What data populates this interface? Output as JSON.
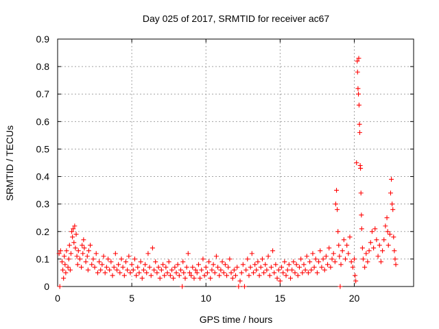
{
  "chart_data": {
    "type": "scatter",
    "title": "Day 025 of 2017, SRMTID for receiver ac67",
    "xlabel": "GPS time / hours",
    "ylabel": "SRMTID / TECUs",
    "xlim": [
      0,
      24
    ],
    "ylim": [
      0,
      0.9
    ],
    "xticks": [
      "0",
      "5",
      "10",
      "15",
      "20"
    ],
    "yticks": [
      "0",
      "0.1",
      "0.2",
      "0.3",
      "0.4",
      "0.5",
      "0.6",
      "0.7",
      "0.8",
      "0.9"
    ],
    "grid": true,
    "marker": "+",
    "color": "#ff0000",
    "series": [
      {
        "name": "SRMTID",
        "points": [
          [
            0.1,
            0.12
          ],
          [
            0.15,
            0.0
          ],
          [
            0.2,
            0.13
          ],
          [
            0.3,
            0.09
          ],
          [
            0.35,
            0.06
          ],
          [
            0.4,
            0.03
          ],
          [
            0.45,
            0.11
          ],
          [
            0.5,
            0.08
          ],
          [
            0.55,
            0.05
          ],
          [
            0.6,
            0.13
          ],
          [
            0.7,
            0.07
          ],
          [
            0.75,
            0.1
          ],
          [
            0.8,
            0.15
          ],
          [
            0.85,
            0.06
          ],
          [
            0.9,
            0.12
          ],
          [
            0.95,
            0.2
          ],
          [
            1.0,
            0.18
          ],
          [
            1.05,
            0.21
          ],
          [
            1.1,
            0.16
          ],
          [
            1.15,
            0.22
          ],
          [
            1.2,
            0.14
          ],
          [
            1.25,
            0.19
          ],
          [
            1.3,
            0.11
          ],
          [
            1.35,
            0.08
          ],
          [
            1.4,
            0.13
          ],
          [
            1.5,
            0.1
          ],
          [
            1.6,
            0.07
          ],
          [
            1.65,
            0.15
          ],
          [
            1.7,
            0.12
          ],
          [
            1.75,
            0.17
          ],
          [
            1.8,
            0.14
          ],
          [
            1.9,
            0.09
          ],
          [
            2.0,
            0.11
          ],
          [
            2.05,
            0.06
          ],
          [
            2.1,
            0.13
          ],
          [
            2.2,
            0.15
          ],
          [
            2.3,
            0.08
          ],
          [
            2.4,
            0.1
          ],
          [
            2.5,
            0.07
          ],
          [
            2.6,
            0.12
          ],
          [
            2.7,
            0.05
          ],
          [
            2.8,
            0.09
          ],
          [
            2.9,
            0.06
          ],
          [
            3.0,
            0.08
          ],
          [
            3.1,
            0.11
          ],
          [
            3.2,
            0.05
          ],
          [
            3.3,
            0.07
          ],
          [
            3.4,
            0.1
          ],
          [
            3.5,
            0.06
          ],
          [
            3.6,
            0.09
          ],
          [
            3.7,
            0.04
          ],
          [
            3.8,
            0.07
          ],
          [
            3.9,
            0.12
          ],
          [
            4.0,
            0.06
          ],
          [
            4.1,
            0.08
          ],
          [
            4.2,
            0.05
          ],
          [
            4.3,
            0.1
          ],
          [
            4.4,
            0.07
          ],
          [
            4.5,
            0.04
          ],
          [
            4.6,
            0.09
          ],
          [
            4.7,
            0.06
          ],
          [
            4.8,
            0.11
          ],
          [
            4.9,
            0.05
          ],
          [
            5.0,
            0.08
          ],
          [
            5.1,
            0.06
          ],
          [
            5.2,
            0.1
          ],
          [
            5.3,
            0.04
          ],
          [
            5.4,
            0.07
          ],
          [
            5.5,
            0.05
          ],
          [
            5.6,
            0.09
          ],
          [
            5.7,
            0.03
          ],
          [
            5.8,
            0.06
          ],
          [
            5.9,
            0.08
          ],
          [
            6.0,
            0.05
          ],
          [
            6.1,
            0.12
          ],
          [
            6.2,
            0.07
          ],
          [
            6.3,
            0.04
          ],
          [
            6.4,
            0.14
          ],
          [
            6.5,
            0.06
          ],
          [
            6.6,
            0.09
          ],
          [
            6.7,
            0.05
          ],
          [
            6.8,
            0.07
          ],
          [
            6.9,
            0.03
          ],
          [
            7.0,
            0.06
          ],
          [
            7.1,
            0.08
          ],
          [
            7.2,
            0.04
          ],
          [
            7.3,
            0.07
          ],
          [
            7.4,
            0.05
          ],
          [
            7.5,
            0.09
          ],
          [
            7.6,
            0.04
          ],
          [
            7.7,
            0.06
          ],
          [
            7.8,
            0.03
          ],
          [
            7.9,
            0.07
          ],
          [
            8.0,
            0.05
          ],
          [
            8.1,
            0.08
          ],
          [
            8.2,
            0.04
          ],
          [
            8.3,
            0.06
          ],
          [
            8.4,
            0.0
          ],
          [
            8.45,
            0.09
          ],
          [
            8.5,
            0.05
          ],
          [
            8.6,
            0.03
          ],
          [
            8.7,
            0.07
          ],
          [
            8.8,
            0.12
          ],
          [
            8.9,
            0.05
          ],
          [
            9.0,
            0.04
          ],
          [
            9.1,
            0.07
          ],
          [
            9.2,
            0.03
          ],
          [
            9.3,
            0.06
          ],
          [
            9.4,
            0.05
          ],
          [
            9.5,
            0.08
          ],
          [
            9.6,
            0.03
          ],
          [
            9.7,
            0.06
          ],
          [
            9.8,
            0.1
          ],
          [
            9.9,
            0.04
          ],
          [
            10.0,
            0.07
          ],
          [
            10.1,
            0.05
          ],
          [
            10.2,
            0.09
          ],
          [
            10.3,
            0.03
          ],
          [
            10.4,
            0.06
          ],
          [
            10.5,
            0.08
          ],
          [
            10.6,
            0.05
          ],
          [
            10.7,
            0.11
          ],
          [
            10.8,
            0.07
          ],
          [
            10.9,
            0.04
          ],
          [
            11.0,
            0.06
          ],
          [
            11.1,
            0.09
          ],
          [
            11.2,
            0.05
          ],
          [
            11.3,
            0.08
          ],
          [
            11.4,
            0.04
          ],
          [
            11.5,
            0.07
          ],
          [
            11.6,
            0.1
          ],
          [
            11.7,
            0.05
          ],
          [
            11.8,
            0.03
          ],
          [
            11.9,
            0.06
          ],
          [
            12.0,
            0.04
          ],
          [
            12.1,
            0.07
          ],
          [
            12.2,
            0.0
          ],
          [
            12.3,
            0.02
          ],
          [
            12.4,
            0.05
          ],
          [
            12.5,
            0.08
          ],
          [
            12.6,
            0.0
          ],
          [
            12.7,
            0.06
          ],
          [
            12.8,
            0.1
          ],
          [
            12.9,
            0.04
          ],
          [
            13.0,
            0.07
          ],
          [
            13.1,
            0.12
          ],
          [
            13.2,
            0.05
          ],
          [
            13.3,
            0.08
          ],
          [
            13.4,
            0.06
          ],
          [
            13.5,
            0.09
          ],
          [
            13.6,
            0.04
          ],
          [
            13.7,
            0.07
          ],
          [
            13.8,
            0.1
          ],
          [
            13.9,
            0.05
          ],
          [
            14.0,
            0.08
          ],
          [
            14.1,
            0.06
          ],
          [
            14.2,
            0.11
          ],
          [
            14.3,
            0.04
          ],
          [
            14.4,
            0.07
          ],
          [
            14.5,
            0.13
          ],
          [
            14.6,
            0.05
          ],
          [
            14.7,
            0.08
          ],
          [
            14.8,
            0.03
          ],
          [
            14.9,
            0.06
          ],
          [
            15.0,
            0.02
          ],
          [
            15.1,
            0.07
          ],
          [
            15.2,
            0.05
          ],
          [
            15.3,
            0.09
          ],
          [
            15.4,
            0.04
          ],
          [
            15.5,
            0.06
          ],
          [
            15.6,
            0.08
          ],
          [
            15.7,
            0.03
          ],
          [
            15.8,
            0.06
          ],
          [
            15.9,
            0.09
          ],
          [
            16.0,
            0.05
          ],
          [
            16.1,
            0.08
          ],
          [
            16.2,
            0.04
          ],
          [
            16.3,
            0.07
          ],
          [
            16.4,
            0.1
          ],
          [
            16.5,
            0.05
          ],
          [
            16.6,
            0.08
          ],
          [
            16.7,
            0.06
          ],
          [
            16.8,
            0.11
          ],
          [
            16.9,
            0.05
          ],
          [
            17.0,
            0.09
          ],
          [
            17.1,
            0.06
          ],
          [
            17.2,
            0.12
          ],
          [
            17.3,
            0.07
          ],
          [
            17.4,
            0.1
          ],
          [
            17.5,
            0.05
          ],
          [
            17.6,
            0.09
          ],
          [
            17.7,
            0.13
          ],
          [
            17.8,
            0.07
          ],
          [
            17.9,
            0.1
          ],
          [
            18.0,
            0.06
          ],
          [
            18.1,
            0.11
          ],
          [
            18.2,
            0.08
          ],
          [
            18.3,
            0.14
          ],
          [
            18.4,
            0.07
          ],
          [
            18.5,
            0.1
          ],
          [
            18.6,
            0.12
          ],
          [
            18.7,
            0.09
          ],
          [
            18.75,
            0.3
          ],
          [
            18.8,
            0.35
          ],
          [
            18.85,
            0.28
          ],
          [
            18.9,
            0.2
          ],
          [
            18.95,
            0.15
          ],
          [
            19.0,
            0.11
          ],
          [
            19.05,
            0.0
          ],
          [
            19.1,
            0.08
          ],
          [
            19.2,
            0.13
          ],
          [
            19.3,
            0.17
          ],
          [
            19.4,
            0.1
          ],
          [
            19.5,
            0.15
          ],
          [
            19.6,
            0.12
          ],
          [
            19.7,
            0.18
          ],
          [
            19.8,
            0.09
          ],
          [
            19.9,
            0.07
          ],
          [
            20.0,
            0.1
          ],
          [
            20.05,
            0.04
          ],
          [
            20.1,
            0.02
          ],
          [
            20.15,
            0.45
          ],
          [
            20.2,
            0.82
          ],
          [
            20.22,
            0.78
          ],
          [
            20.25,
            0.72
          ],
          [
            20.28,
            0.7
          ],
          [
            20.3,
            0.83
          ],
          [
            20.32,
            0.66
          ],
          [
            20.35,
            0.59
          ],
          [
            20.37,
            0.56
          ],
          [
            20.4,
            0.44
          ],
          [
            20.42,
            0.43
          ],
          [
            20.45,
            0.34
          ],
          [
            20.48,
            0.26
          ],
          [
            20.5,
            0.21
          ],
          [
            20.55,
            0.14
          ],
          [
            20.6,
            0.1
          ],
          [
            20.7,
            0.07
          ],
          [
            20.8,
            0.12
          ],
          [
            20.9,
            0.09
          ],
          [
            21.0,
            0.13
          ],
          [
            21.1,
            0.16
          ],
          [
            21.2,
            0.2
          ],
          [
            21.3,
            0.14
          ],
          [
            21.4,
            0.21
          ],
          [
            21.5,
            0.17
          ],
          [
            21.6,
            0.11
          ],
          [
            21.7,
            0.15
          ],
          [
            21.8,
            0.09
          ],
          [
            21.9,
            0.13
          ],
          [
            22.0,
            0.17
          ],
          [
            22.1,
            0.22
          ],
          [
            22.2,
            0.25
          ],
          [
            22.25,
            0.2
          ],
          [
            22.3,
            0.15
          ],
          [
            22.4,
            0.19
          ],
          [
            22.45,
            0.34
          ],
          [
            22.5,
            0.39
          ],
          [
            22.55,
            0.3
          ],
          [
            22.6,
            0.28
          ],
          [
            22.65,
            0.18
          ],
          [
            22.7,
            0.13
          ],
          [
            22.75,
            0.1
          ],
          [
            22.8,
            0.08
          ]
        ]
      }
    ]
  }
}
